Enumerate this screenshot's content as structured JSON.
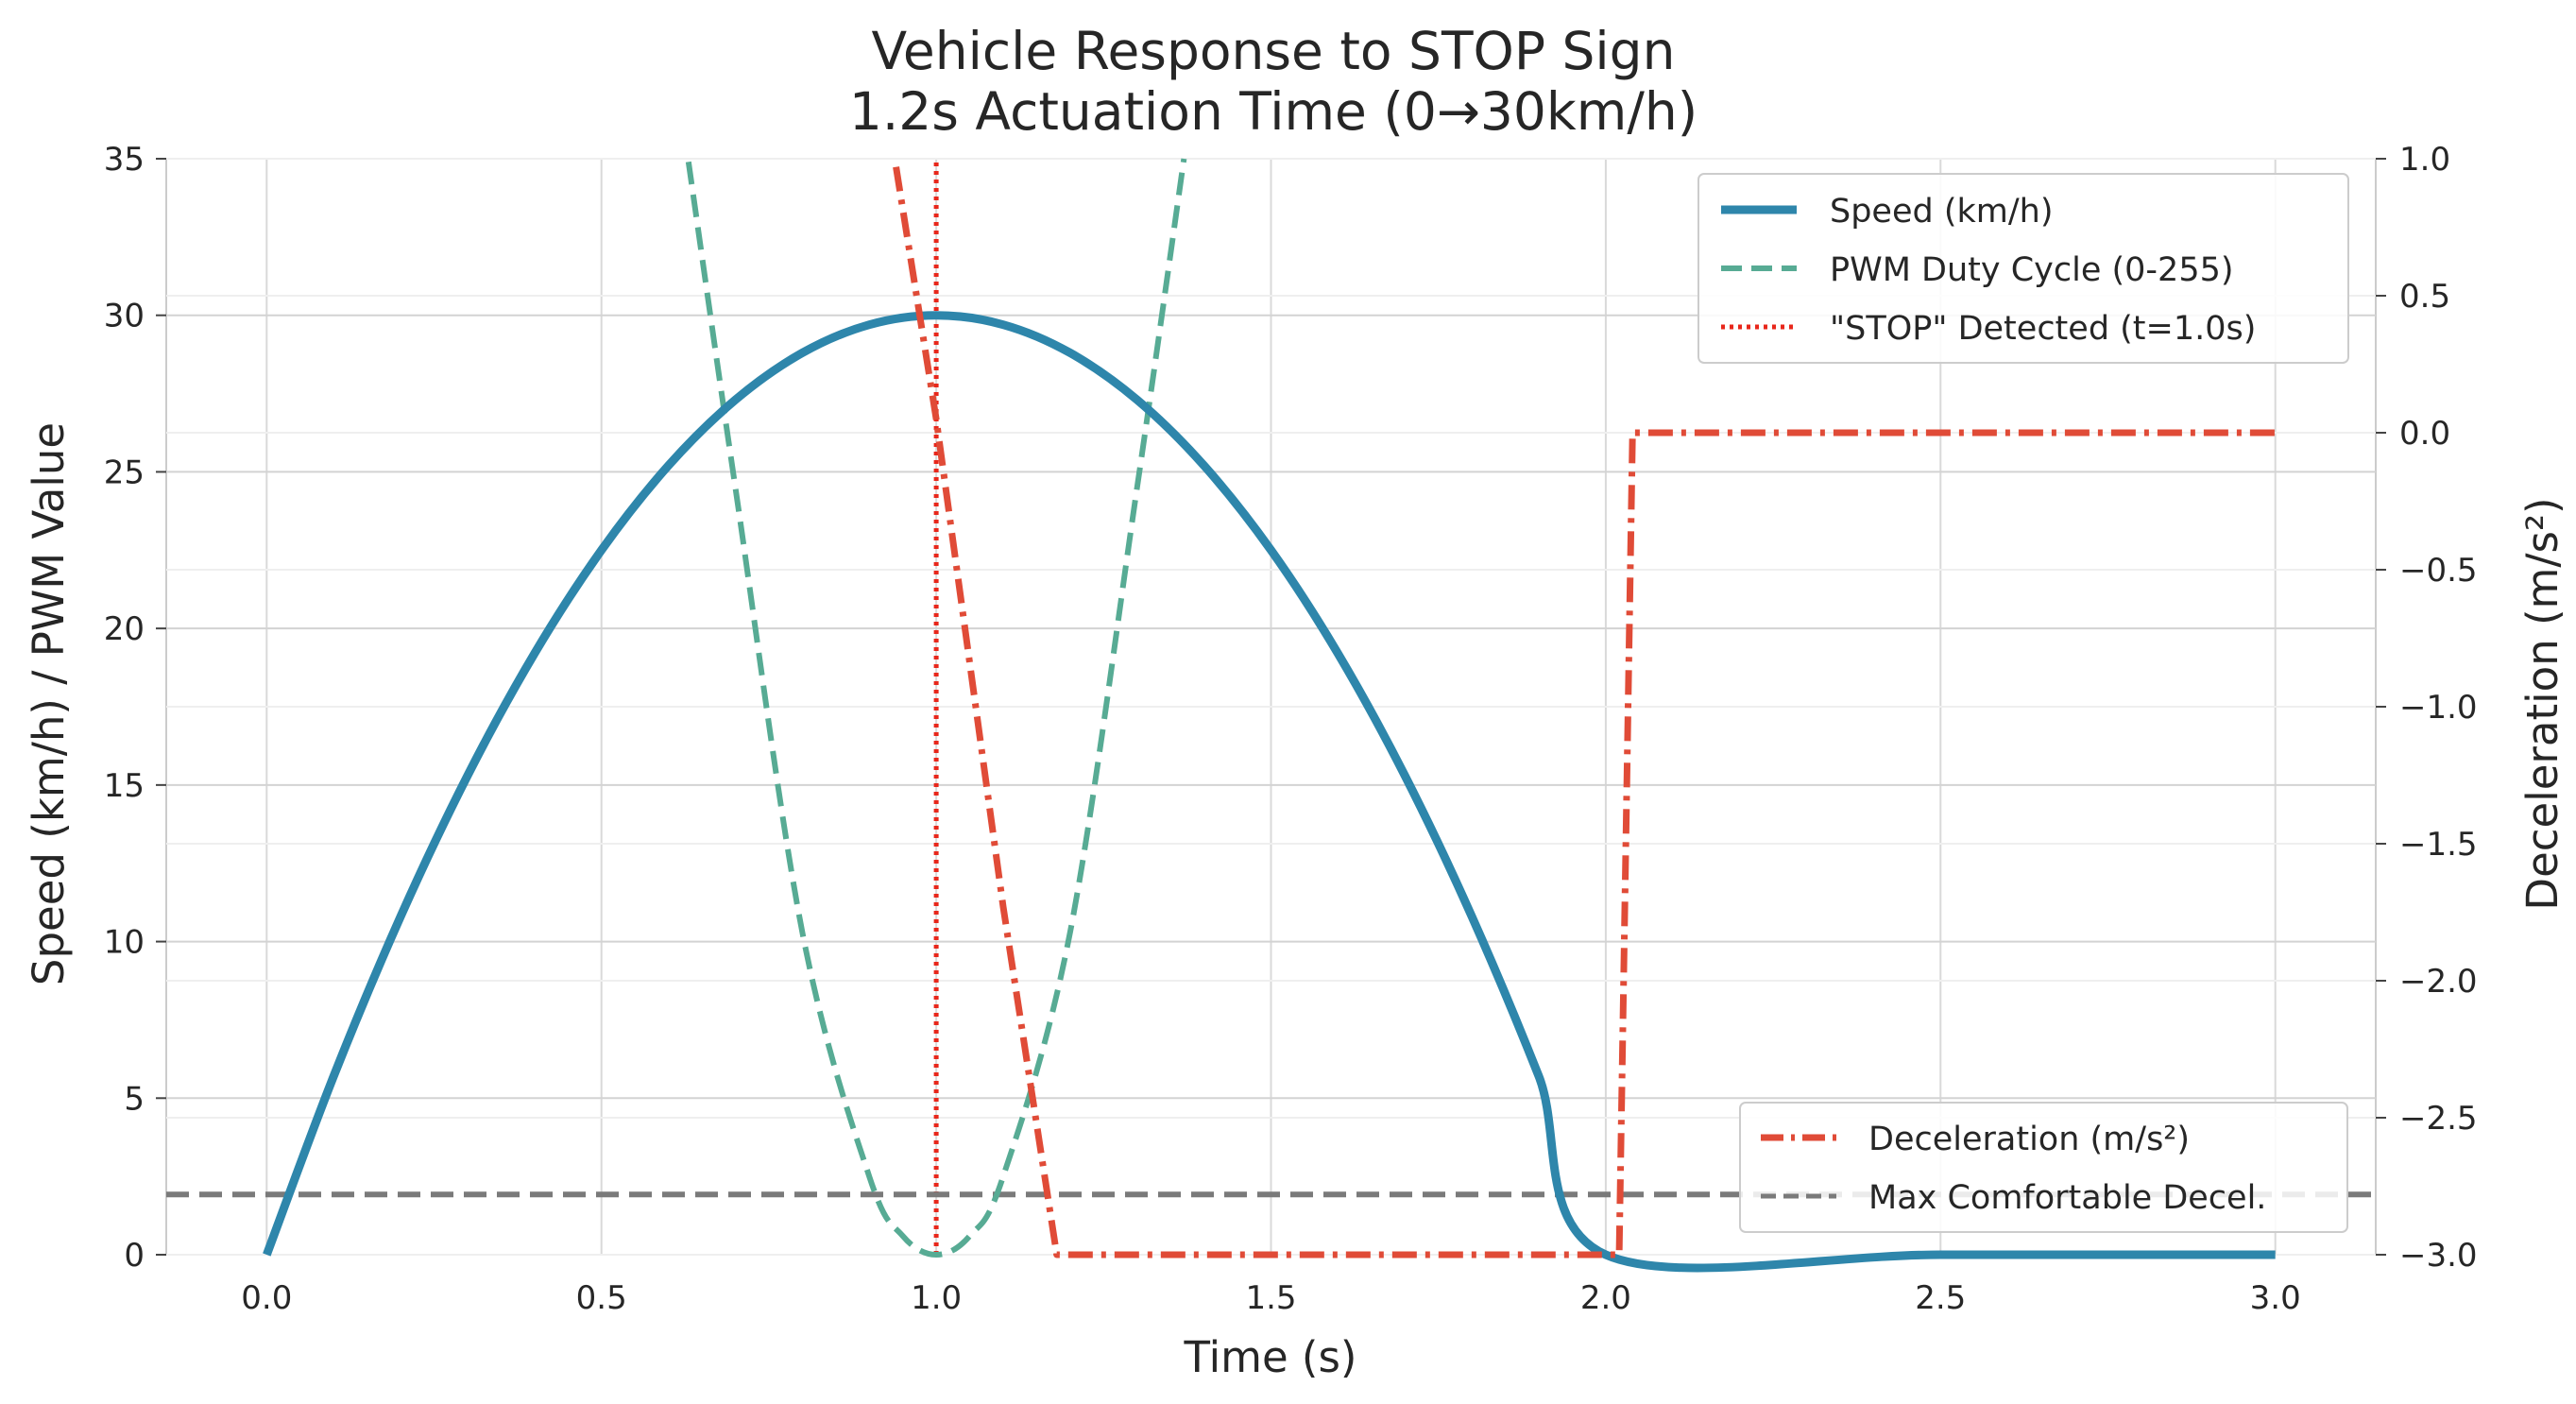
{
  "chart_data": {
    "type": "line",
    "title": "Vehicle Response to STOP Sign",
    "subtitle": "1.2s Actuation Time (0→30km/h)",
    "xlabel": "Time (s)",
    "ylabel_left": "Speed (km/h) / PWM Value",
    "ylabel_right": "Deceleration (m/s²)",
    "xlim": [
      -0.15,
      3.15
    ],
    "ylim_left": [
      0,
      35
    ],
    "ylim_right": [
      -3.0,
      1.0
    ],
    "x_ticks": [
      0.0,
      0.5,
      1.0,
      1.5,
      2.0,
      2.5,
      3.0
    ],
    "x_tick_labels": [
      "0.0",
      "0.5",
      "1.0",
      "1.5",
      "2.0",
      "2.5",
      "3.0"
    ],
    "y_left_ticks": [
      0,
      5,
      10,
      15,
      20,
      25,
      30,
      35
    ],
    "y_left_tick_labels": [
      "0",
      "5",
      "10",
      "15",
      "20",
      "25",
      "30",
      "35"
    ],
    "y_right_ticks": [
      -3.0,
      -2.5,
      -2.0,
      -1.5,
      -1.0,
      -0.5,
      0.0,
      0.5,
      1.0
    ],
    "y_right_tick_labels": [
      "−3.0",
      "−2.5",
      "−2.0",
      "−1.5",
      "−1.0",
      "−0.5",
      "0.0",
      "0.5",
      "1.0"
    ],
    "grid": true,
    "legend_left_axis": {
      "placement": "upper right",
      "entries": [
        "Speed (km/h)",
        "PWM Duty Cycle (0-255)",
        "\"STOP\" Detected (t=1.0s)"
      ]
    },
    "legend_right_axis": {
      "placement": "lower right",
      "entries": [
        "Deceleration (m/s²)",
        "Max Comfortable Decel."
      ]
    },
    "series": [
      {
        "name": "Speed (km/h)",
        "axis": "left",
        "color": "#2e86ab",
        "style": "solid",
        "x": [
          0.0,
          0.1,
          0.2,
          0.3,
          0.4,
          0.5,
          0.6,
          0.7,
          0.8,
          0.9,
          1.0,
          1.1,
          1.2,
          1.3,
          1.4,
          1.5,
          1.6,
          1.7,
          1.8,
          1.9,
          2.0,
          2.5,
          3.0
        ],
        "y": [
          0.0,
          5.7,
          10.8,
          15.3,
          19.2,
          22.5,
          25.2,
          27.3,
          28.8,
          29.7,
          30.0,
          29.7,
          28.8,
          27.3,
          25.2,
          22.5,
          19.2,
          15.3,
          10.8,
          5.7,
          0.0,
          0.0,
          0.0
        ]
      },
      {
        "name": "PWM Duty Cycle (0-255)",
        "axis": "left",
        "color": "#57ab94",
        "style": "dashed",
        "x": [
          0.63,
          0.7,
          0.8,
          0.9,
          0.95,
          1.0,
          1.05,
          1.1,
          1.2,
          1.3,
          1.37
        ],
        "y": [
          34.9,
          24.5,
          10.3,
          2.5,
          0.6,
          0.0,
          0.6,
          2.5,
          10.3,
          24.5,
          35.0
        ]
      },
      {
        "name": "Deceleration (m/s²)",
        "axis": "right",
        "color": "#e04b37",
        "style": "dashdot",
        "x": [
          0.94,
          1.0,
          1.1,
          1.18,
          2.02,
          2.03,
          2.04,
          3.0
        ],
        "y": [
          0.97,
          0.05,
          -1.73,
          -3.0,
          -3.0,
          -1.5,
          0.0,
          0.0
        ]
      },
      {
        "name": "\"STOP\" Detected (t=1.0s)",
        "axis": "left",
        "color": "#e8271b",
        "style": "dotted",
        "x": [
          1.0,
          1.0
        ],
        "y": [
          0,
          35
        ]
      },
      {
        "name": "Max Comfortable Decel.",
        "axis": "right",
        "color": "#7a7a7a",
        "style": "dashed",
        "x": [
          -0.15,
          3.15
        ],
        "y": [
          -2.78,
          -2.78
        ]
      }
    ]
  }
}
